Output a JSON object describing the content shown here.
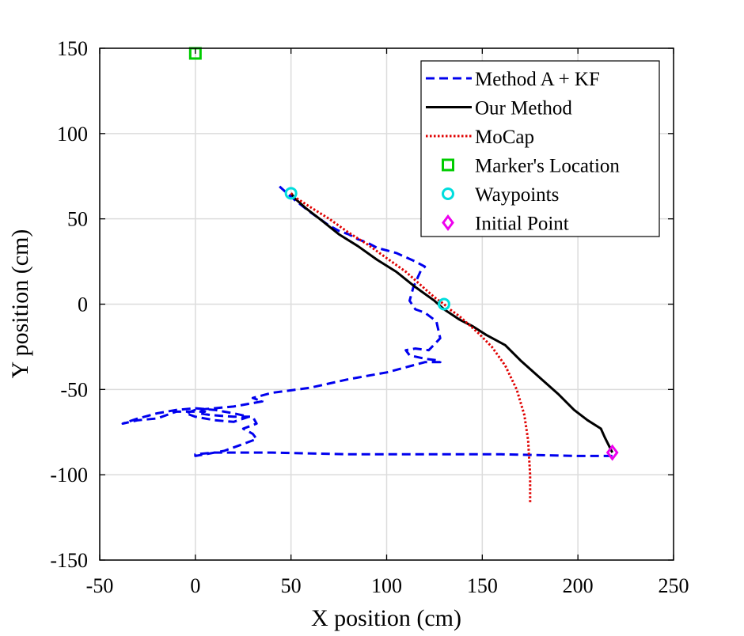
{
  "chart_data": {
    "type": "line",
    "xlabel": "X position (cm)",
    "ylabel": "Y position (cm)",
    "xlim": [
      -50,
      250
    ],
    "ylim": [
      -150,
      150
    ],
    "xticks": [
      -50,
      0,
      50,
      100,
      150,
      200,
      250
    ],
    "yticks": [
      -150,
      -100,
      -50,
      0,
      50,
      100,
      150
    ],
    "grid": true,
    "legend_position": "top-right",
    "series": [
      {
        "name": "Method A + KF",
        "style": "dashed",
        "color": "#0000ee",
        "x": [
          218,
          200,
          160,
          120,
          80,
          40,
          10,
          0,
          0,
          5,
          15,
          25,
          32,
          30,
          25,
          32,
          30,
          20,
          8,
          2,
          5,
          -10,
          -20,
          -30,
          -38,
          -30,
          -20,
          -10,
          0,
          10,
          20,
          28,
          20,
          10,
          0,
          -5,
          0,
          10,
          20,
          30,
          35,
          30,
          40,
          60,
          80,
          100,
          110,
          120,
          128,
          127,
          120,
          112,
          110,
          115,
          122,
          128,
          126,
          120,
          115,
          112,
          114,
          118,
          120,
          115,
          105,
          95,
          90,
          85,
          80,
          75,
          70,
          60,
          52,
          47,
          44
        ],
        "y": [
          -89,
          -89,
          -88,
          -88,
          -88,
          -87,
          -87,
          -88,
          -89,
          -88,
          -86,
          -82,
          -79,
          -76,
          -73,
          -70,
          -66,
          -66,
          -65,
          -64,
          -63,
          -63,
          -67,
          -68,
          -70,
          -67,
          -64,
          -62,
          -61,
          -62,
          -64,
          -66,
          -69,
          -68,
          -66,
          -64,
          -62,
          -61,
          -60,
          -58,
          -57,
          -55,
          -52,
          -49,
          -44,
          -40,
          -37,
          -34,
          -34,
          -33,
          -32,
          -30,
          -27,
          -26,
          -27,
          -20,
          -10,
          -5,
          -3,
          2,
          10,
          20,
          22,
          25,
          30,
          33,
          36,
          38,
          41,
          43,
          46,
          54,
          61,
          66,
          69
        ]
      },
      {
        "name": "Our Method",
        "style": "solid",
        "color": "#000000",
        "x": [
          218,
          214,
          212,
          205,
          198,
          190,
          180,
          170,
          162,
          152,
          145,
          138,
          130,
          125,
          115,
          105,
          95,
          85,
          75,
          65,
          58,
          52,
          50
        ],
        "y": [
          -87,
          -78,
          -73,
          -68,
          -62,
          -53,
          -43,
          -33,
          -24,
          -18,
          -13,
          -9,
          -3,
          2,
          10,
          19,
          26,
          34,
          41,
          50,
          56,
          62,
          65
        ]
      },
      {
        "name": "MoCap",
        "style": "dotted",
        "color": "#e00000",
        "x": [
          175,
          175,
          174.5,
          174,
          172,
          168,
          162,
          155,
          148,
          142,
          138,
          133,
          130,
          125,
          118,
          110,
          100,
          90,
          80,
          70,
          60,
          53,
          50
        ],
        "y": [
          -116,
          -100,
          -90,
          -80,
          -65,
          -50,
          -36,
          -25,
          -17,
          -11,
          -7,
          -3,
          0,
          4,
          11,
          19,
          27,
          35,
          42,
          50,
          57,
          62,
          65
        ]
      },
      {
        "name": "Marker's Location",
        "style": "marker-square",
        "color": "#00cc00",
        "x": [
          0
        ],
        "y": [
          147
        ]
      },
      {
        "name": "Waypoints",
        "style": "marker-circle",
        "color": "#00dddd",
        "x": [
          50,
          130
        ],
        "y": [
          65,
          0
        ]
      },
      {
        "name": "Initial Point",
        "style": "marker-diamond",
        "color": "#ee00ee",
        "x": [
          218
        ],
        "y": [
          -87
        ]
      }
    ]
  }
}
